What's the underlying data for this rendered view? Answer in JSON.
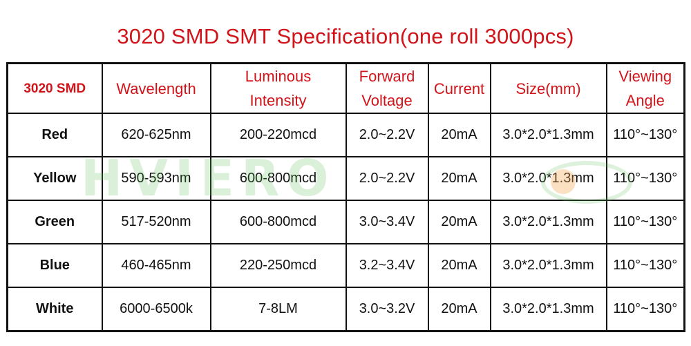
{
  "title": "3020 SMD SMT Specification(one roll 3000pcs)",
  "headers": [
    {
      "lines": [
        "3020 SMD"
      ]
    },
    {
      "lines": [
        "Wavelength"
      ]
    },
    {
      "lines": [
        "Luminous",
        "Intensity"
      ]
    },
    {
      "lines": [
        "Forward",
        "Voltage"
      ]
    },
    {
      "lines": [
        "Current"
      ]
    },
    {
      "lines": [
        "Size(mm)"
      ]
    },
    {
      "lines": [
        "Viewing",
        "Angle"
      ]
    }
  ],
  "rows": [
    {
      "color": "Red",
      "wavelength": "620-625nm",
      "intensity": "200-220mcd",
      "voltage": "2.0~2.2V",
      "current": "20mA",
      "size": "3.0*2.0*1.3mm",
      "angle": "110°~130°"
    },
    {
      "color": "Yellow",
      "wavelength": "590-593nm",
      "intensity": "600-800mcd",
      "voltage": "2.0~2.2V",
      "current": "20mA",
      "size": "3.0*2.0*1.3mm",
      "angle": "110°~130°"
    },
    {
      "color": "Green",
      "wavelength": "517-520nm",
      "intensity": "600-800mcd",
      "voltage": "3.0~3.4V",
      "current": "20mA",
      "size": "3.0*2.0*1.3mm",
      "angle": "110°~130°"
    },
    {
      "color": "Blue",
      "wavelength": "460-465nm",
      "intensity": "220-250mcd",
      "voltage": "3.2~3.4V",
      "current": "20mA",
      "size": "3.0*2.0*1.3mm",
      "angle": "110°~130°"
    },
    {
      "color": "White",
      "wavelength": "6000-6500k",
      "intensity": "7-8LM",
      "voltage": "3.0~3.2V",
      "current": "20mA",
      "size": "3.0*2.0*1.3mm",
      "angle": "110°~130°"
    }
  ],
  "watermark": "HVIERO",
  "colors": {
    "accent": "#d0141a",
    "text": "#111111",
    "border": "#111111",
    "watermark": "#5ab950"
  }
}
